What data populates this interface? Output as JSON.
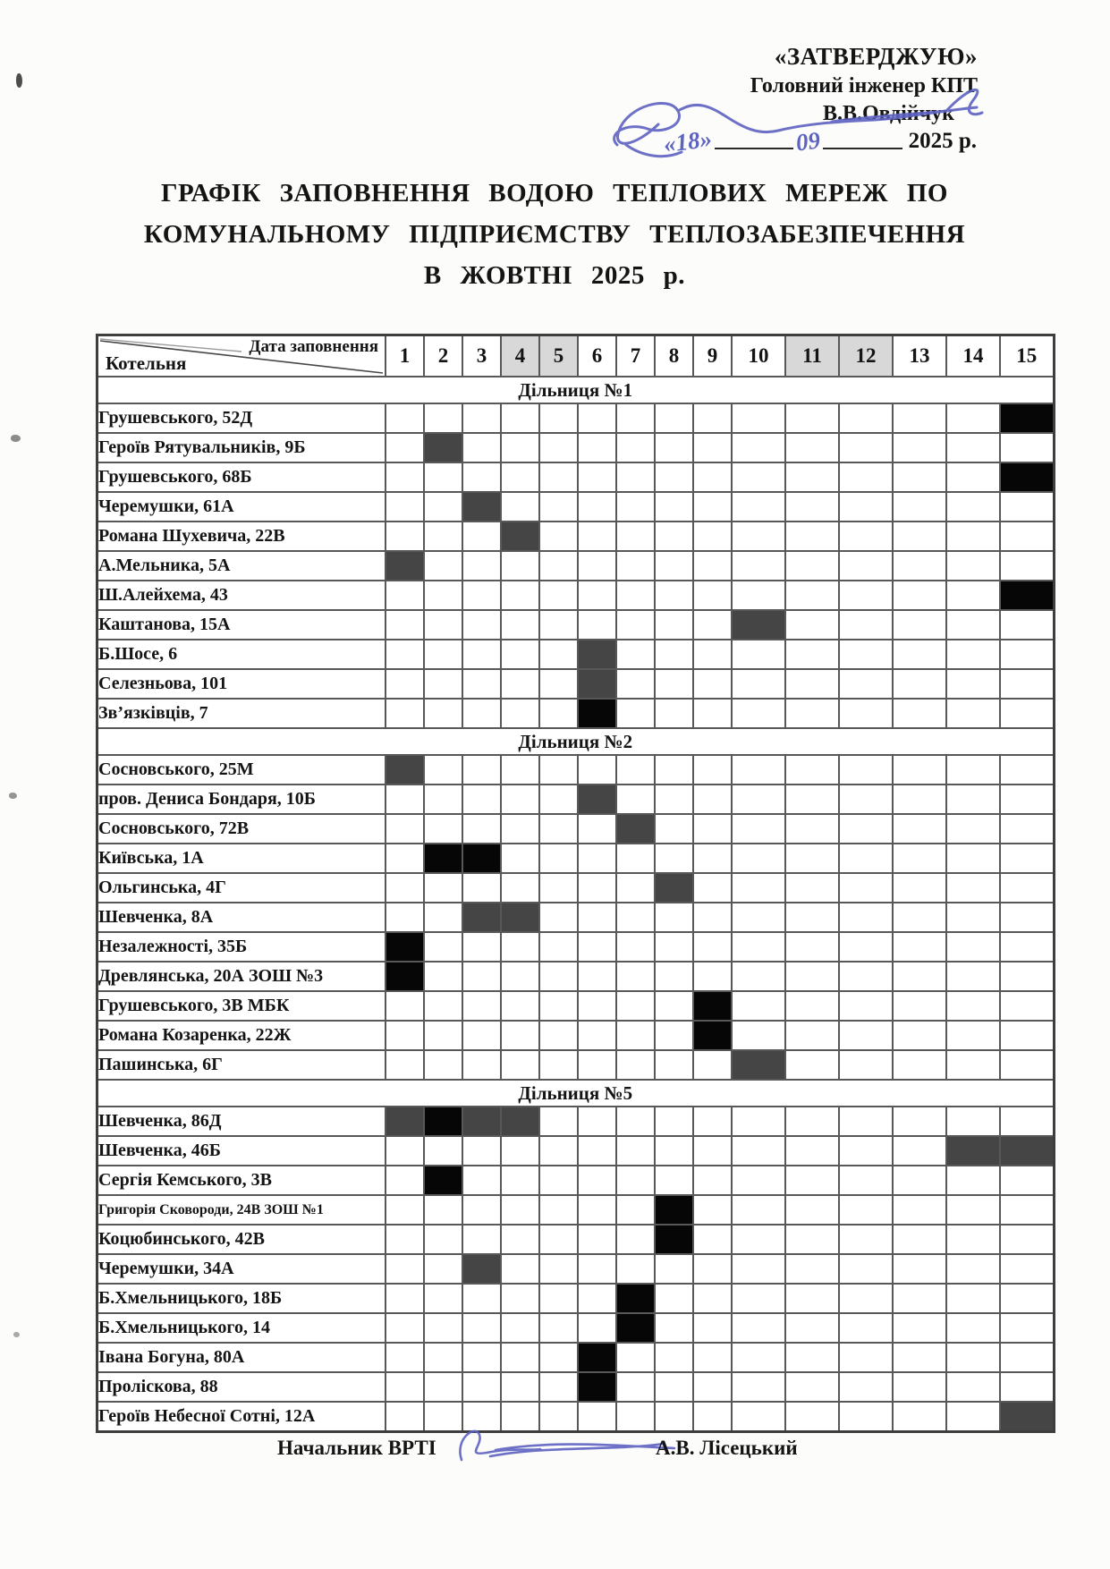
{
  "approval": {
    "stamp": "«ЗАТВЕРДЖУЮ»",
    "position": "Головний інженер КПТ",
    "name": "В.В.Овдійчук",
    "date_day": "«18»",
    "date_month": "09",
    "date_year": "2025 р."
  },
  "title": {
    "line1": "ГРАФІК ЗАПОВНЕННЯ ВОДОЮ ТЕПЛОВИХ МЕРЕЖ ПО",
    "line2": "КОМУНАЛЬНОМУ ПІДПРИЄМСТВУ ТЕПЛОЗАБЕЗПЕЧЕННЯ",
    "line3": "В ЖОВТНІ 2025 р."
  },
  "table": {
    "corner": {
      "top": "Дата заповнення",
      "bottom": "Котельня"
    },
    "dates": [
      "1",
      "2",
      "3",
      "4",
      "5",
      "6",
      "7",
      "8",
      "9",
      "10",
      "11",
      "12",
      "13",
      "14",
      "15"
    ],
    "shaded_dates": [
      4,
      5,
      11,
      12
    ],
    "sections": [
      {
        "label": "Дільниця №1",
        "rows": [
          {
            "name": "Грушевського, 52Д",
            "fills": [
              {
                "col": 15,
                "type": "black"
              }
            ]
          },
          {
            "name": "Героїв Рятувальників, 9Б",
            "fills": [
              {
                "col": 2,
                "type": "gray"
              }
            ]
          },
          {
            "name": "Грушевського, 68Б",
            "fills": [
              {
                "col": 15,
                "type": "black"
              }
            ]
          },
          {
            "name": "Черемушки, 61А",
            "fills": [
              {
                "col": 3,
                "type": "gray"
              }
            ]
          },
          {
            "name": "Романа Шухевича, 22В",
            "fills": [
              {
                "col": 4,
                "type": "gray"
              }
            ]
          },
          {
            "name": "А.Мельника, 5А",
            "fills": [
              {
                "col": 1,
                "type": "gray"
              }
            ]
          },
          {
            "name": "Ш.Алейхема, 43",
            "fills": [
              {
                "col": 15,
                "type": "black"
              }
            ]
          },
          {
            "name": "Каштанова, 15А",
            "fills": [
              {
                "col": 10,
                "type": "gray"
              }
            ]
          },
          {
            "name": "Б.Шосе, 6",
            "fills": [
              {
                "col": 6,
                "type": "gray"
              }
            ]
          },
          {
            "name": "Селезньова, 101",
            "fills": [
              {
                "col": 6,
                "type": "gray"
              }
            ]
          },
          {
            "name": "Зв’язківців, 7",
            "fills": [
              {
                "col": 6,
                "type": "black"
              }
            ]
          }
        ]
      },
      {
        "label": "Дільниця №2",
        "rows": [
          {
            "name": "Сосновського, 25М",
            "fills": [
              {
                "col": 1,
                "type": "gray"
              }
            ]
          },
          {
            "name": "пров. Дениса Бондаря, 10Б",
            "fills": [
              {
                "col": 6,
                "type": "gray"
              }
            ]
          },
          {
            "name": "Сосновського, 72В",
            "fills": [
              {
                "col": 7,
                "type": "gray"
              }
            ]
          },
          {
            "name": "Київська, 1А",
            "fills": [
              {
                "col": 2,
                "type": "black"
              },
              {
                "col": 3,
                "type": "black"
              }
            ]
          },
          {
            "name": "Ольгинська, 4Г",
            "fills": [
              {
                "col": 8,
                "type": "gray"
              }
            ]
          },
          {
            "name": "Шевченка, 8А",
            "fills": [
              {
                "col": 3,
                "type": "gray"
              },
              {
                "col": 4,
                "type": "gray"
              }
            ]
          },
          {
            "name": "Незалежності, 35Б",
            "fills": [
              {
                "col": 1,
                "type": "black"
              }
            ]
          },
          {
            "name": "Древлянська, 20А ЗОШ №3",
            "fills": [
              {
                "col": 1,
                "type": "black"
              }
            ]
          },
          {
            "name": "Грушевського, 3В МБК",
            "fills": [
              {
                "col": 9,
                "type": "black"
              }
            ]
          },
          {
            "name": "Романа Козаренка, 22Ж",
            "fills": [
              {
                "col": 9,
                "type": "black"
              }
            ]
          },
          {
            "name": "Пашинська, 6Г",
            "fills": [
              {
                "col": 10,
                "type": "gray"
              }
            ]
          }
        ]
      },
      {
        "label": "Дільниця №5",
        "rows": [
          {
            "name": "Шевченка, 86Д",
            "fills": [
              {
                "col": 1,
                "type": "gray"
              },
              {
                "col": 2,
                "type": "black"
              },
              {
                "col": 3,
                "type": "gray"
              },
              {
                "col": 4,
                "type": "gray"
              }
            ]
          },
          {
            "name": "Шевченка, 46Б",
            "fills": [
              {
                "col": 14,
                "type": "gray"
              },
              {
                "col": 15,
                "type": "gray"
              }
            ]
          },
          {
            "name": "Сергія Кемського, 3В",
            "fills": [
              {
                "col": 2,
                "type": "black"
              }
            ]
          },
          {
            "name": "Григорія Сковороди, 24В ЗОШ №1",
            "fills": [
              {
                "col": 8,
                "type": "black"
              }
            ]
          },
          {
            "name": "Коцюбинського, 42В",
            "fills": [
              {
                "col": 8,
                "type": "black"
              }
            ]
          },
          {
            "name": "Черемушки, 34А",
            "fills": [
              {
                "col": 3,
                "type": "gray"
              }
            ]
          },
          {
            "name": "Б.Хмельницького, 18Б",
            "fills": [
              {
                "col": 7,
                "type": "black"
              }
            ]
          },
          {
            "name": "Б.Хмельницького, 14",
            "fills": [
              {
                "col": 7,
                "type": "black"
              }
            ]
          },
          {
            "name": "Івана Богуна, 80А",
            "fills": [
              {
                "col": 6,
                "type": "black"
              }
            ]
          },
          {
            "name": "Проліскова, 88",
            "fills": [
              {
                "col": 6,
                "type": "black"
              }
            ]
          },
          {
            "name": "Героїв Небесної Сотні, 12А",
            "fills": [
              {
                "col": 15,
                "type": "gray"
              }
            ]
          }
        ]
      }
    ]
  },
  "footer": {
    "position": "Начальник ВРТІ",
    "name": "А.В. Лісецький"
  },
  "colors": {
    "fill_black": "#060606",
    "fill_gray": "#454545",
    "header_shade": "#d8d8d8",
    "ink_blue": "#5d63c2",
    "grid_line": "#585858"
  }
}
